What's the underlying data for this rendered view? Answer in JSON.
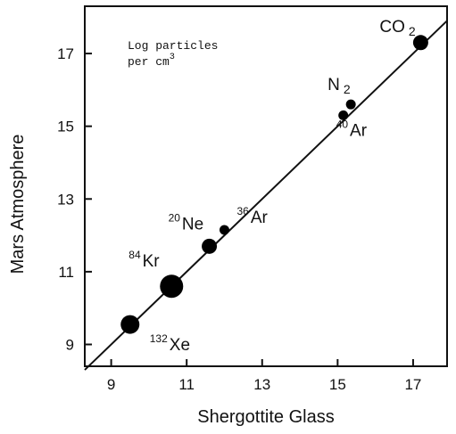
{
  "chart_data": {
    "type": "scatter",
    "title": "",
    "annotation": {
      "line1": "Log particles",
      "line2": "per cm",
      "line2_sup": "3"
    },
    "xlabel": "Shergottite Glass",
    "ylabel": "Mars Atmosphere",
    "xlim": [
      8.3,
      17.9
    ],
    "ylim": [
      8.4,
      18.3
    ],
    "xticks": [
      9,
      11,
      13,
      15,
      17
    ],
    "yticks": [
      9,
      11,
      13,
      15,
      17
    ],
    "xtick_labels": [
      "9",
      "11",
      "13",
      "15",
      "17"
    ],
    "ytick_labels": [
      "9",
      "11",
      "13",
      "15",
      "17"
    ],
    "grid": false,
    "reference_line": {
      "x": [
        8.3,
        17.9
      ],
      "y": [
        8.3,
        17.9
      ]
    },
    "points": [
      {
        "label": "Xe",
        "sup": "132",
        "x": 9.5,
        "y": 9.55,
        "size": "large"
      },
      {
        "label": "Kr",
        "sup": "84",
        "x": 10.6,
        "y": 10.6,
        "size": "xlarge"
      },
      {
        "label": "Ne",
        "sup": "20",
        "x": 11.6,
        "y": 11.7,
        "size": "medium"
      },
      {
        "label": "Ar",
        "sup": "36",
        "x": 12.0,
        "y": 12.15,
        "size": "small"
      },
      {
        "label": "Ar",
        "sup": "40",
        "x": 15.15,
        "y": 15.3,
        "size": "small"
      },
      {
        "label": "N",
        "sub": "2",
        "x": 15.35,
        "y": 15.6,
        "size": "small"
      },
      {
        "label": "CO",
        "sub": "2",
        "x": 17.2,
        "y": 17.3,
        "size": "medium"
      }
    ]
  }
}
